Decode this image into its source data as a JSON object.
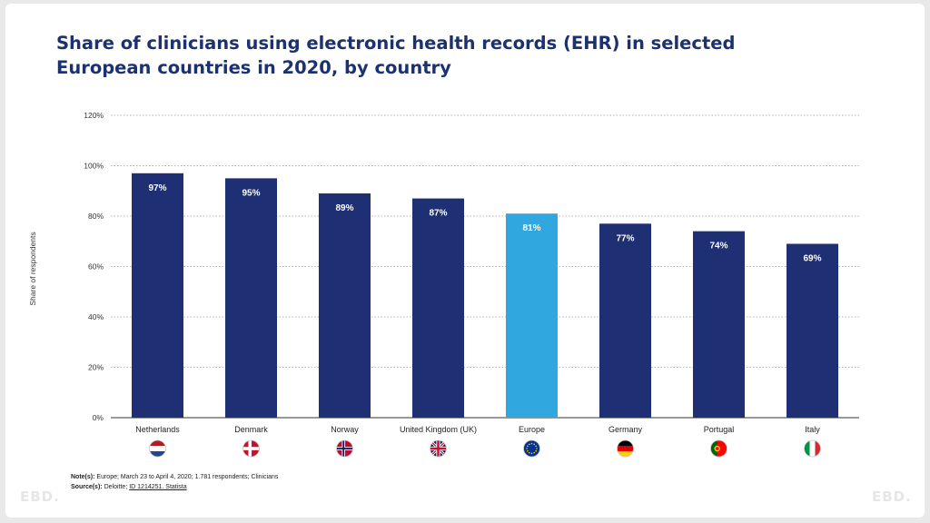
{
  "chart_data": {
    "type": "bar",
    "title": "Share of clinicians using electronic health records (EHR) in selected European countries in 2020, by country",
    "categories": [
      "Netherlands",
      "Denmark",
      "Norway",
      "United Kingdom (UK)",
      "Europe",
      "Germany",
      "Portugal",
      "Italy"
    ],
    "values": [
      97,
      95,
      89,
      87,
      81,
      77,
      74,
      69
    ],
    "data_labels": [
      "97%",
      "95%",
      "89%",
      "87%",
      "81%",
      "77%",
      "74%",
      "69%"
    ],
    "highlight_category": "Europe",
    "ylabel": "Share of respondents",
    "xlabel": "",
    "ylim": [
      0,
      120
    ],
    "yticks": [
      0,
      20,
      40,
      60,
      80,
      100,
      120
    ],
    "ytick_labels": [
      "0%",
      "20%",
      "40%",
      "60%",
      "80%",
      "100%",
      "120%"
    ],
    "grid": true,
    "bar_color": "#1f2f73",
    "highlight_color": "#31a7df"
  },
  "flags": [
    "netherlands-flag-icon",
    "denmark-flag-icon",
    "norway-flag-icon",
    "uk-flag-icon",
    "eu-flag-icon",
    "germany-flag-icon",
    "portugal-flag-icon",
    "italy-flag-icon"
  ],
  "notes": {
    "note_label": "Note(s):",
    "note_text": "Europe; March 23 to April 4, 2020; 1.781 respondents; Clinicians",
    "source_label": "Source(s):",
    "source_text": "Deloitte;",
    "source_link": "ID 1214251. Statista"
  },
  "watermark": "EBD."
}
